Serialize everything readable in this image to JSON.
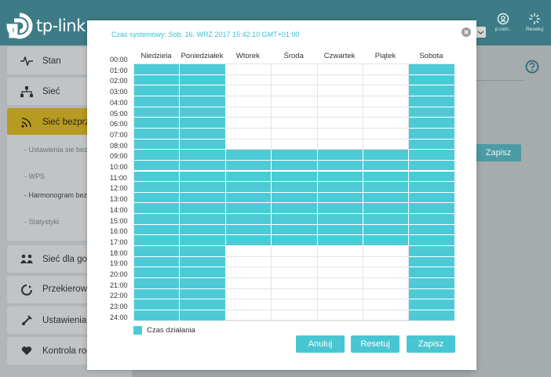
{
  "header": {
    "brand": "tp-link",
    "icons": [
      {
        "icon": "cloud-account-icon",
        "label": "p.rom.."
      },
      {
        "icon": "reset-icon",
        "label": "Resetuj"
      }
    ]
  },
  "sidebar": {
    "items": [
      {
        "label": "Stan",
        "icon": "pulse-icon"
      },
      {
        "label": "Sieć",
        "icon": "network-icon"
      },
      {
        "label": "Sieć bezprze",
        "icon": "wifi-icon"
      },
      {
        "label": "Sieć dla gośc",
        "icon": "guests-icon"
      },
      {
        "label": "Przekierowa portów",
        "icon": "forwarding-icon"
      },
      {
        "label": "Ustawienia U",
        "icon": "usb-icon"
      },
      {
        "label": "Kontrola rod",
        "icon": "heart-icon"
      }
    ],
    "submenu": [
      {
        "label": "Ustawienia sie bezprzewodow"
      },
      {
        "label": "WPS"
      },
      {
        "label": "Harmonogram bezprzewodow"
      },
      {
        "label": "Statystyki"
      }
    ]
  },
  "background": {
    "save_label": "Zapisz"
  },
  "modal": {
    "system_time": "Czas systemowy: Sob. 16. WRZ 2017 15:42:10 GMT+01:00",
    "days": [
      "Niedziela",
      "Poniedziałek",
      "Wtorek",
      "Środa",
      "Czwartek",
      "Piątek",
      "Sobota"
    ],
    "hours": [
      "00:00",
      "01:00",
      "02:00",
      "03:00",
      "04:00",
      "05:00",
      "06:00",
      "07:00",
      "08:00",
      "09:00",
      "10:00",
      "11:00",
      "12:00",
      "13:00",
      "14:00",
      "15:00",
      "16:00",
      "17:00",
      "18:00",
      "19:00",
      "20:00",
      "21:00",
      "22:00",
      "23:00",
      "24:00"
    ],
    "schedule": [
      {
        "day": "Niedziela",
        "active_from": 0,
        "active_to": 24
      },
      {
        "day": "Poniedziałek",
        "active_from": 0,
        "active_to": 24
      },
      {
        "day": "Wtorek",
        "active_from": 8,
        "active_to": 17
      },
      {
        "day": "Środa",
        "active_from": 8,
        "active_to": 17
      },
      {
        "day": "Czwartek",
        "active_from": 8,
        "active_to": 17
      },
      {
        "day": "Piątek",
        "active_from": 8,
        "active_to": 17
      },
      {
        "day": "Sobota",
        "active_from": 0,
        "active_to": 24
      }
    ],
    "legend_label": "Czas działania",
    "colors": {
      "active": "#4ccbd6",
      "accent": "#49c6d3"
    },
    "buttons": {
      "cancel": "Anuluj",
      "reset": "Resetuj",
      "save": "Zapisz"
    }
  }
}
